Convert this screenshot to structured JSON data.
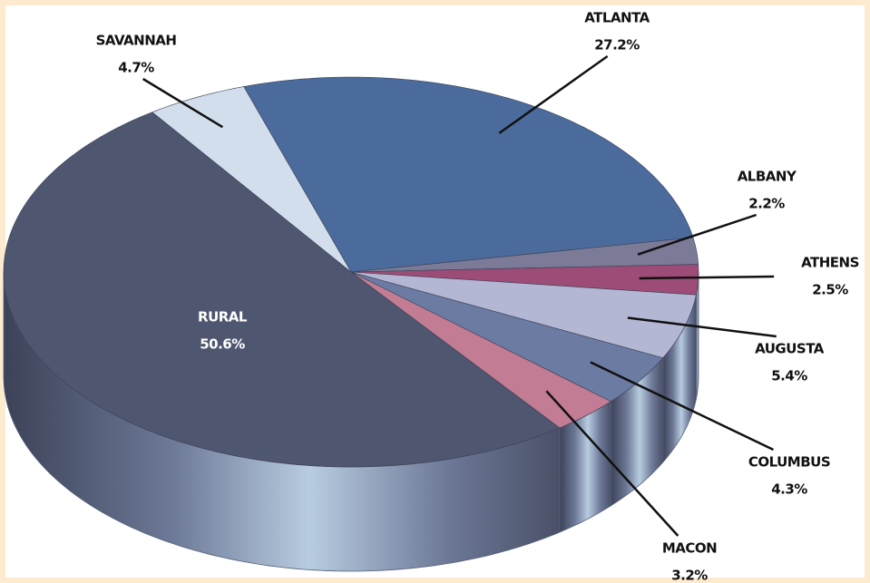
{
  "chart_data": {
    "type": "pie",
    "categories": [
      "ATLANTA",
      "ALBANY",
      "ATHENS",
      "AUGUSTA",
      "COLUMBUS",
      "MACON",
      "RURAL",
      "SAVANNAH"
    ],
    "values": [
      27.2,
      2.2,
      2.5,
      5.4,
      4.3,
      3.2,
      50.6,
      4.7
    ],
    "value_labels": [
      "27.2%",
      "2.2%",
      "2.5%",
      "5.4%",
      "4.3%",
      "3.2%",
      "50.6%",
      "4.7%"
    ],
    "colors": [
      "#4b6b9c",
      "#7b7b98",
      "#9c4c76",
      "#b3b7d3",
      "#6b7ba2",
      "#c27c93",
      "#4f566f",
      "#d3deec"
    ]
  }
}
